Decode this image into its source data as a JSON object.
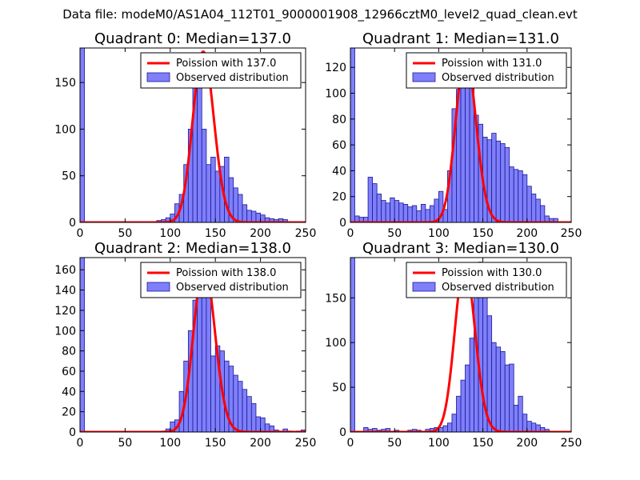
{
  "figure": {
    "suptitle": "Data file: modeM0/AS1A04_112T01_9000001908_12966cztM0_level2_quad_clean.evt",
    "colors": {
      "bar_fill": "#7f7ffa",
      "bar_edge": "#1a1a9a",
      "poisson_line": "#ff0000",
      "axes": "#000000",
      "background": "#ffffff"
    }
  },
  "chart_data": [
    {
      "type": "bar",
      "title": "Quadrant 0: Median=137.0",
      "xlabel": "",
      "ylabel": "",
      "xlim": [
        0,
        250
      ],
      "ylim": [
        0,
        187
      ],
      "xticks": [
        0,
        50,
        100,
        150,
        200,
        250
      ],
      "yticks": [
        0,
        50,
        100,
        150
      ],
      "grid": false,
      "bin_width": 5,
      "legend": [
        "Poission with 137.0",
        "Observed distribution"
      ],
      "legend_loc": "upper right",
      "poisson_mean": 137.0,
      "poisson_peak": 183,
      "bins": [
        [
          0,
          187
        ],
        [
          85,
          2
        ],
        [
          90,
          3
        ],
        [
          95,
          5
        ],
        [
          100,
          9
        ],
        [
          105,
          20
        ],
        [
          110,
          30
        ],
        [
          115,
          62
        ],
        [
          120,
          100
        ],
        [
          125,
          180
        ],
        [
          130,
          170
        ],
        [
          135,
          100
        ],
        [
          140,
          62
        ],
        [
          145,
          70
        ],
        [
          150,
          55
        ],
        [
          155,
          60
        ],
        [
          160,
          70
        ],
        [
          165,
          48
        ],
        [
          170,
          37
        ],
        [
          175,
          30
        ],
        [
          180,
          19
        ],
        [
          185,
          13
        ],
        [
          190,
          12
        ],
        [
          195,
          10
        ],
        [
          200,
          8
        ],
        [
          205,
          5
        ],
        [
          210,
          4
        ],
        [
          215,
          3
        ],
        [
          220,
          4
        ],
        [
          225,
          3
        ]
      ]
    },
    {
      "type": "bar",
      "title": "Quadrant 1: Median=131.0",
      "xlabel": "",
      "ylabel": "",
      "xlim": [
        0,
        250
      ],
      "ylim": [
        0,
        135
      ],
      "xticks": [
        0,
        50,
        100,
        150,
        200,
        250
      ],
      "yticks": [
        0,
        20,
        40,
        60,
        80,
        100,
        120
      ],
      "grid": false,
      "bin_width": 5,
      "legend": [
        "Poission with 131.0",
        "Observed distribution"
      ],
      "legend_loc": "upper right",
      "poisson_mean": 131.0,
      "poisson_peak": 130,
      "bins": [
        [
          0,
          135
        ],
        [
          5,
          5
        ],
        [
          10,
          4
        ],
        [
          15,
          4
        ],
        [
          20,
          35
        ],
        [
          25,
          30
        ],
        [
          30,
          22
        ],
        [
          35,
          17
        ],
        [
          40,
          15
        ],
        [
          45,
          19
        ],
        [
          50,
          17
        ],
        [
          55,
          15
        ],
        [
          60,
          14
        ],
        [
          65,
          12
        ],
        [
          70,
          13
        ],
        [
          75,
          9
        ],
        [
          80,
          14
        ],
        [
          85,
          10
        ],
        [
          90,
          13
        ],
        [
          95,
          18
        ],
        [
          100,
          24
        ],
        [
          105,
          10
        ],
        [
          110,
          40
        ],
        [
          115,
          88
        ],
        [
          120,
          103
        ],
        [
          125,
          128
        ],
        [
          130,
          108
        ],
        [
          135,
          107
        ],
        [
          140,
          83
        ],
        [
          145,
          76
        ],
        [
          150,
          66
        ],
        [
          155,
          64
        ],
        [
          160,
          69
        ],
        [
          165,
          63
        ],
        [
          170,
          61
        ],
        [
          175,
          58
        ],
        [
          180,
          43
        ],
        [
          185,
          41
        ],
        [
          190,
          40
        ],
        [
          195,
          37
        ],
        [
          200,
          28
        ],
        [
          205,
          22
        ],
        [
          210,
          18
        ],
        [
          215,
          13
        ],
        [
          220,
          5
        ],
        [
          225,
          3
        ],
        [
          230,
          3
        ]
      ]
    },
    {
      "type": "bar",
      "title": "Quadrant 2: Median=138.0",
      "xlabel": "",
      "ylabel": "",
      "xlim": [
        0,
        250
      ],
      "ylim": [
        0,
        172
      ],
      "xticks": [
        0,
        50,
        100,
        150,
        200,
        250
      ],
      "yticks": [
        0,
        20,
        40,
        60,
        80,
        100,
        120,
        140,
        160
      ],
      "grid": false,
      "bin_width": 5,
      "legend": [
        "Poission with 138.0",
        "Observed distribution"
      ],
      "legend_loc": "upper right",
      "poisson_mean": 138.0,
      "poisson_peak": 165,
      "bins": [
        [
          0,
          172
        ],
        [
          90,
          1
        ],
        [
          95,
          3
        ],
        [
          100,
          10
        ],
        [
          105,
          12
        ],
        [
          110,
          40
        ],
        [
          115,
          70
        ],
        [
          120,
          100
        ],
        [
          125,
          130
        ],
        [
          130,
          163
        ],
        [
          135,
          165
        ],
        [
          140,
          160
        ],
        [
          145,
          75
        ],
        [
          150,
          85
        ],
        [
          155,
          80
        ],
        [
          160,
          70
        ],
        [
          165,
          65
        ],
        [
          170,
          56
        ],
        [
          175,
          50
        ],
        [
          180,
          42
        ],
        [
          185,
          35
        ],
        [
          190,
          28
        ],
        [
          195,
          15
        ],
        [
          200,
          14
        ],
        [
          205,
          8
        ],
        [
          210,
          6
        ],
        [
          215,
          2
        ],
        [
          220,
          1
        ],
        [
          225,
          3
        ],
        [
          230,
          1
        ],
        [
          240,
          1
        ],
        [
          245,
          2
        ]
      ]
    },
    {
      "type": "bar",
      "title": "Quadrant 3: Median=130.0",
      "xlabel": "",
      "ylabel": "",
      "xlim": [
        0,
        250
      ],
      "ylim": [
        0,
        195
      ],
      "xticks": [
        0,
        50,
        100,
        150,
        200,
        250
      ],
      "yticks": [
        0,
        50,
        100,
        150
      ],
      "grid": false,
      "bin_width": 5,
      "legend": [
        "Poission with 130.0",
        "Observed distribution"
      ],
      "legend_loc": "upper right",
      "poisson_mean": 130.0,
      "poisson_peak": 188,
      "bins": [
        [
          0,
          195
        ],
        [
          15,
          5
        ],
        [
          20,
          3
        ],
        [
          25,
          4
        ],
        [
          30,
          2
        ],
        [
          35,
          3
        ],
        [
          40,
          4
        ],
        [
          45,
          1
        ],
        [
          50,
          2
        ],
        [
          55,
          1
        ],
        [
          60,
          1
        ],
        [
          65,
          2
        ],
        [
          70,
          3
        ],
        [
          75,
          2
        ],
        [
          80,
          1
        ],
        [
          85,
          3
        ],
        [
          90,
          4
        ],
        [
          95,
          5
        ],
        [
          100,
          5
        ],
        [
          105,
          7
        ],
        [
          110,
          10
        ],
        [
          115,
          20
        ],
        [
          120,
          40
        ],
        [
          125,
          58
        ],
        [
          130,
          75
        ],
        [
          135,
          105
        ],
        [
          140,
          160
        ],
        [
          145,
          190
        ],
        [
          150,
          185
        ],
        [
          155,
          130
        ],
        [
          160,
          100
        ],
        [
          165,
          95
        ],
        [
          170,
          90
        ],
        [
          175,
          75
        ],
        [
          180,
          76
        ],
        [
          185,
          30
        ],
        [
          190,
          40
        ],
        [
          195,
          20
        ],
        [
          200,
          12
        ],
        [
          205,
          10
        ],
        [
          210,
          8
        ],
        [
          215,
          5
        ],
        [
          220,
          3
        ],
        [
          225,
          1
        ]
      ]
    }
  ]
}
